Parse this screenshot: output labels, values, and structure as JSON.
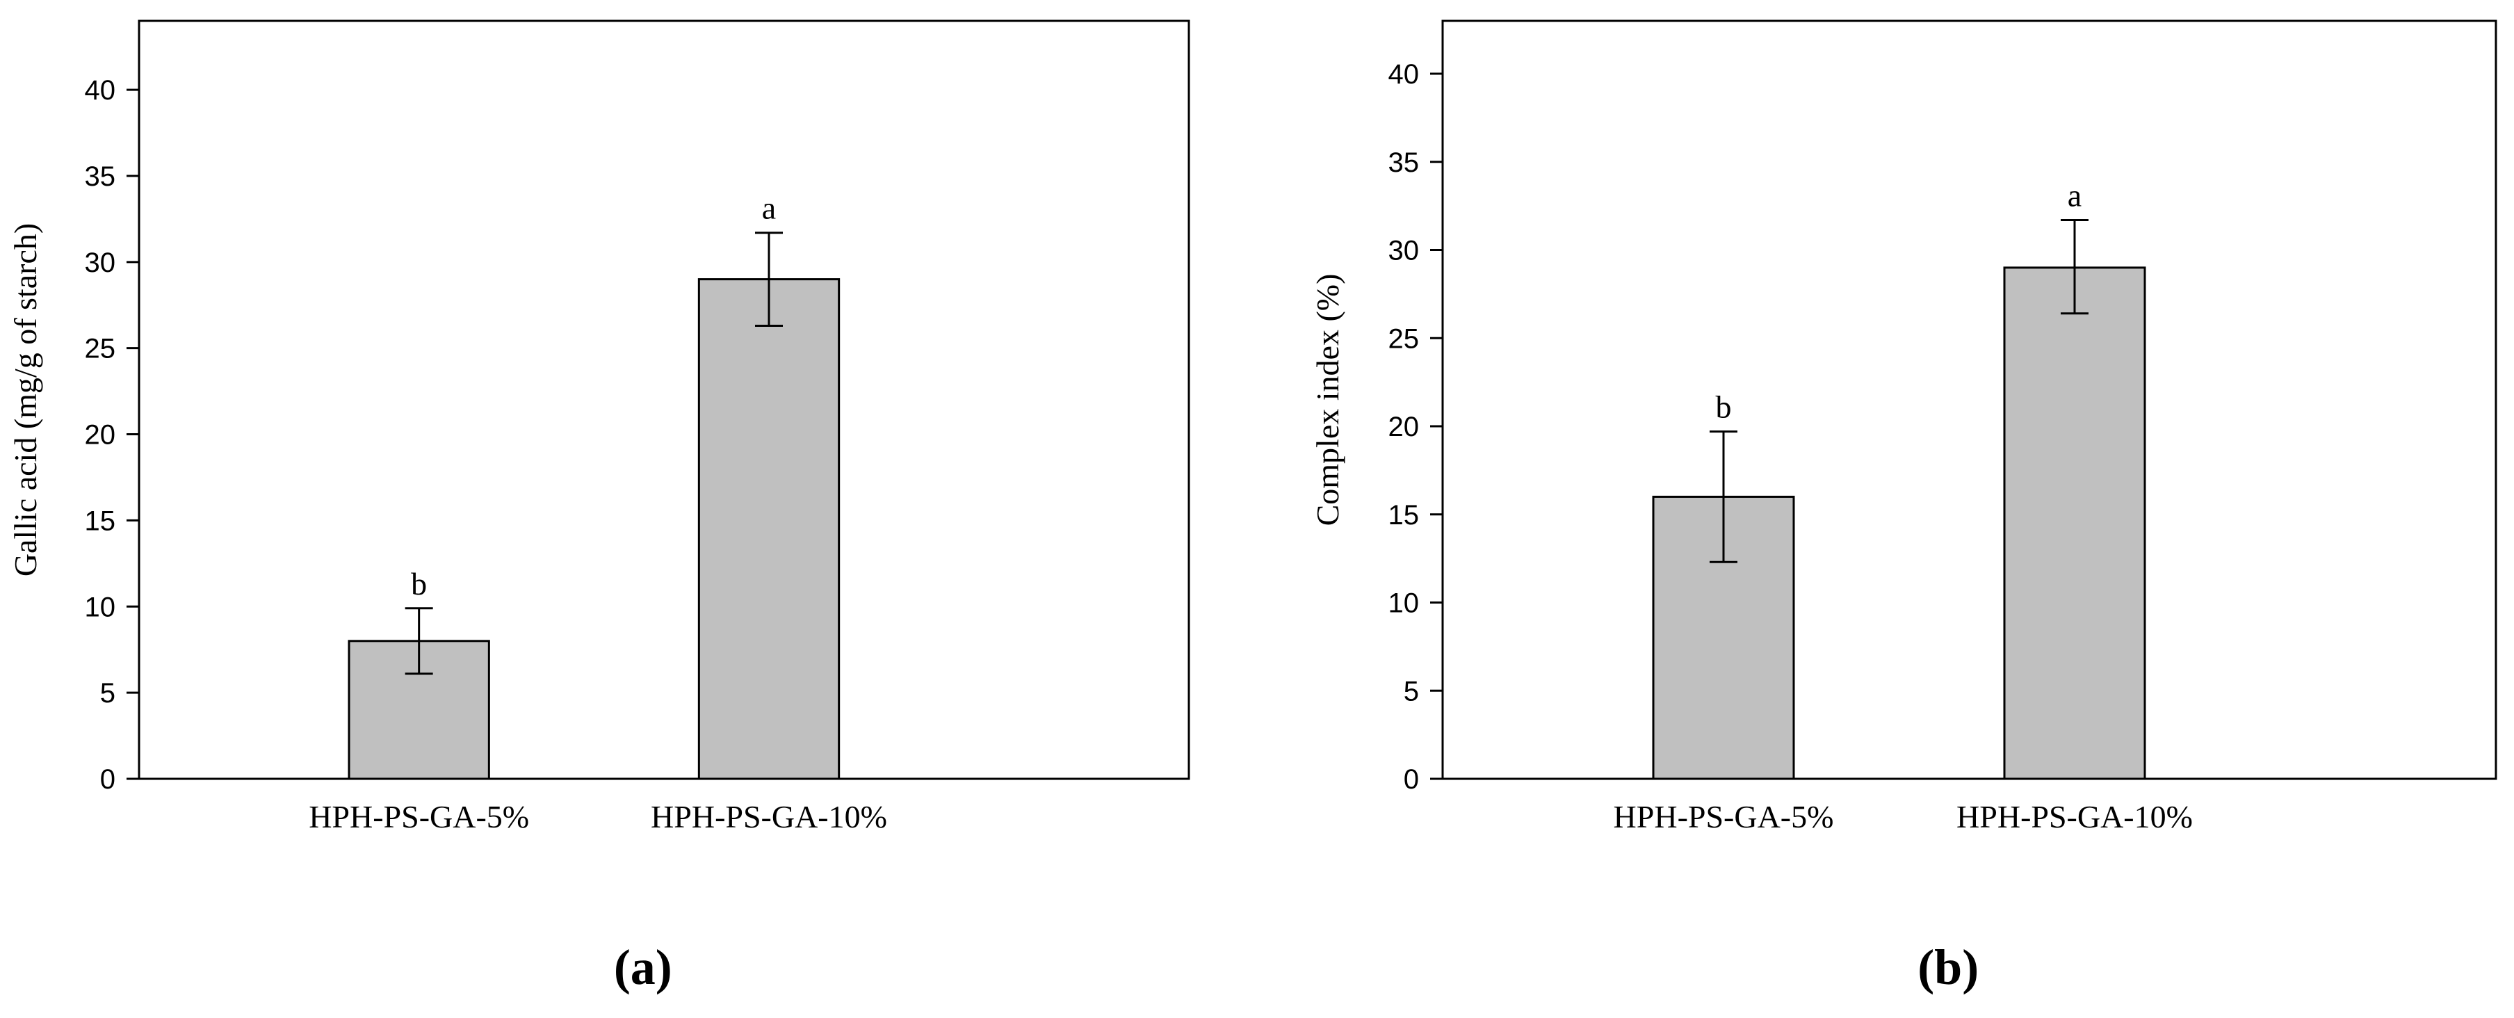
{
  "chart_data": [
    {
      "type": "bar",
      "panel_label": "(a)",
      "ylabel": "Gallic acid (mg/g of starch)",
      "xlabel": "",
      "ylim": [
        0,
        44
      ],
      "yticks": [
        "0",
        "5",
        "10",
        "15",
        "20",
        "25",
        "30",
        "35",
        "40"
      ],
      "yticks_values": [
        0,
        5,
        10,
        15,
        20,
        25,
        30,
        35,
        40
      ],
      "xlim": [
        -0.8,
        2.2
      ],
      "categories": [
        "HPH-PS-GA-5%",
        "HPH-PS-GA-10%"
      ],
      "values": [
        8.0,
        29.0
      ],
      "error_low": [
        6.1,
        26.3
      ],
      "error_high": [
        9.9,
        31.7
      ],
      "significance": [
        "b",
        "a"
      ],
      "bar_color": "#c0c0c0",
      "grid": false,
      "legend": "none"
    },
    {
      "type": "bar",
      "panel_label": "(b)",
      "ylabel": "Complex index (%)",
      "xlabel": "",
      "ylim": [
        0,
        43
      ],
      "yticks": [
        "0",
        "5",
        "10",
        "15",
        "20",
        "25",
        "30",
        "35",
        "40"
      ],
      "yticks_values": [
        0,
        5,
        10,
        15,
        20,
        25,
        30,
        35,
        40
      ],
      "xlim": [
        -0.8,
        2.2
      ],
      "categories": [
        "HPH-PS-GA-5%",
        "HPH-PS-GA-10%"
      ],
      "values": [
        16.0,
        29.0
      ],
      "error_low": [
        12.3,
        26.4
      ],
      "error_high": [
        19.7,
        31.7
      ],
      "significance": [
        "b",
        "a"
      ],
      "bar_color": "#c0c0c0",
      "grid": false,
      "legend": "none"
    }
  ]
}
